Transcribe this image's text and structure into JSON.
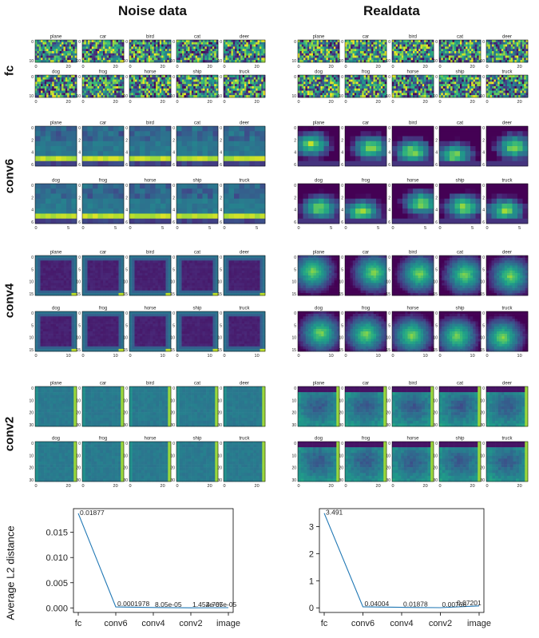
{
  "columns": [
    "Noise data",
    "Realdata"
  ],
  "rows": [
    {
      "name": "fc",
      "xticks": [
        "0",
        "20"
      ],
      "yticks": [
        "0",
        "10"
      ]
    },
    {
      "name": "conv6",
      "xticks": [
        "0",
        "5"
      ],
      "yticks": [
        "0",
        "2",
        "4",
        "6"
      ]
    },
    {
      "name": "conv4",
      "xticks": [
        "0",
        "10"
      ],
      "yticks": [
        "0",
        "5",
        "10",
        "15"
      ]
    },
    {
      "name": "conv2",
      "xticks": [
        "0",
        "20"
      ],
      "yticks": [
        "0",
        "10",
        "20",
        "30"
      ]
    }
  ],
  "classes": [
    "plane",
    "car",
    "bird",
    "cat",
    "deer",
    "dog",
    "frog",
    "horse",
    "ship",
    "truck"
  ],
  "colors": {
    "viridis_dark": "#440154",
    "viridis_mid": "#21918c",
    "viridis_bright": "#fde725",
    "line": "#1f77b4"
  },
  "ylabel_shared": "Average L2 distance",
  "chart_data": [
    {
      "type": "line",
      "title": "",
      "x": [
        "fc",
        "conv6",
        "conv4",
        "conv2",
        "image"
      ],
      "series": [
        {
          "values": [
            0.01877,
            0.0001978,
            8.05e-05,
            1.452e-05,
            4.767e-05
          ]
        }
      ],
      "point_labels": [
        "0.01877",
        "0.0001978",
        "8.05e-05",
        "1.452e-05",
        "4.767e-05"
      ],
      "ylabel": "Average L2 distance",
      "ylim": [
        -0.0009,
        0.0197
      ],
      "yticks": [
        "0.000",
        "0.005",
        "0.010",
        "0.015"
      ],
      "ytick_values": [
        0,
        0.005,
        0.01,
        0.015
      ]
    },
    {
      "type": "line",
      "title": "",
      "x": [
        "fc",
        "conv6",
        "conv4",
        "conv2",
        "image"
      ],
      "series": [
        {
          "values": [
            3.491,
            0.04004,
            0.01878,
            0.00766,
            0.07201
          ]
        }
      ],
      "point_labels": [
        "3.491",
        "0.04004",
        "0.01878",
        "0.00766",
        "0.07201"
      ],
      "ylabel": "",
      "ylim": [
        -0.17,
        3.66
      ],
      "yticks": [
        "0",
        "1",
        "2",
        "3"
      ],
      "ytick_values": [
        0,
        1,
        2,
        3
      ]
    }
  ]
}
